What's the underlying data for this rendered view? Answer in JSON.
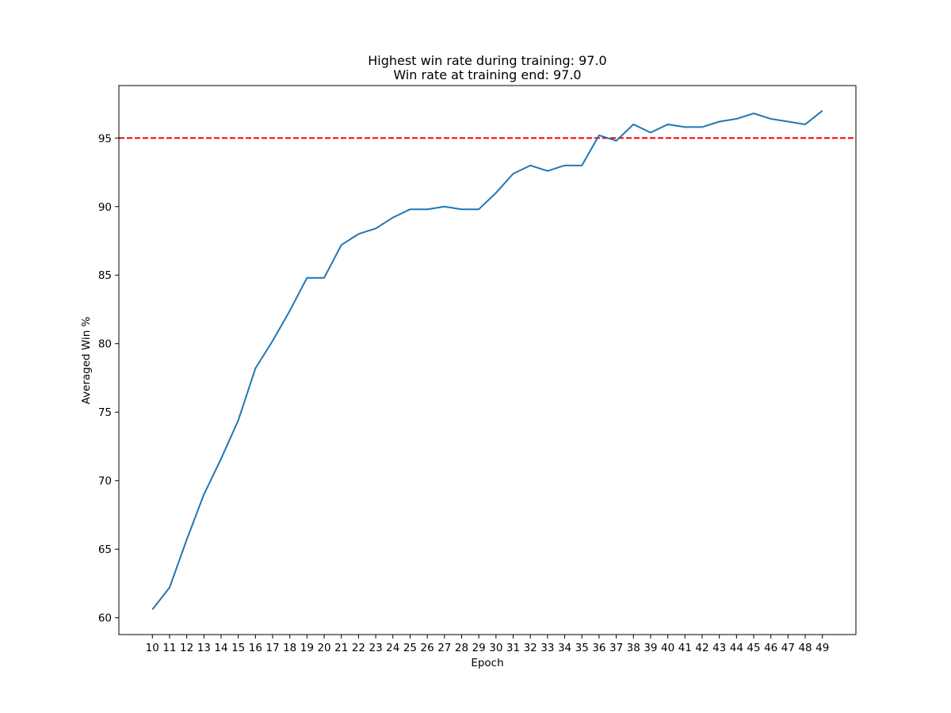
{
  "chart_data": {
    "type": "line",
    "title_lines": [
      "Highest win rate during training: 97.0",
      "Win rate at training end: 97.0"
    ],
    "xlabel": "Epoch",
    "ylabel": "Averaged Win %",
    "x": [
      10,
      11,
      12,
      13,
      14,
      15,
      16,
      17,
      18,
      19,
      20,
      21,
      22,
      23,
      24,
      25,
      26,
      27,
      28,
      29,
      30,
      31,
      32,
      33,
      34,
      35,
      36,
      37,
      38,
      39,
      40,
      41,
      42,
      43,
      44,
      45,
      46,
      47,
      48,
      49
    ],
    "series": [
      {
        "values": [
          60.6,
          62.2,
          65.7,
          69.0,
          71.6,
          74.4,
          78.2,
          80.2,
          82.4,
          84.8,
          84.8,
          87.2,
          88.0,
          88.4,
          89.2,
          89.8,
          89.8,
          90.0,
          89.8,
          89.8,
          91.0,
          92.4,
          93.0,
          92.6,
          93.0,
          93.0,
          95.2,
          94.8,
          96.0,
          95.4,
          96.0,
          95.8,
          95.8,
          96.2,
          96.4,
          96.8,
          96.4,
          96.2,
          96.0,
          97.0
        ],
        "color": "#1f77b4"
      }
    ],
    "reference_line": {
      "y": 95,
      "color": "#ff0000",
      "style": "dashed"
    },
    "x_ticks": [
      "10",
      "11",
      "12",
      "13",
      "14",
      "15",
      "16",
      "17",
      "18",
      "19",
      "20",
      "21",
      "22",
      "23",
      "24",
      "25",
      "26",
      "27",
      "28",
      "29",
      "30",
      "31",
      "32",
      "33",
      "34",
      "35",
      "36",
      "37",
      "38",
      "39",
      "40",
      "41",
      "42",
      "43",
      "44",
      "45",
      "46",
      "47",
      "48",
      "49"
    ],
    "y_ticks": [
      60,
      65,
      70,
      75,
      80,
      85,
      90,
      95
    ],
    "xlim": [
      8.05,
      50.95
    ],
    "ylim": [
      58.77,
      98.83
    ],
    "grid": false,
    "legend": "none"
  }
}
